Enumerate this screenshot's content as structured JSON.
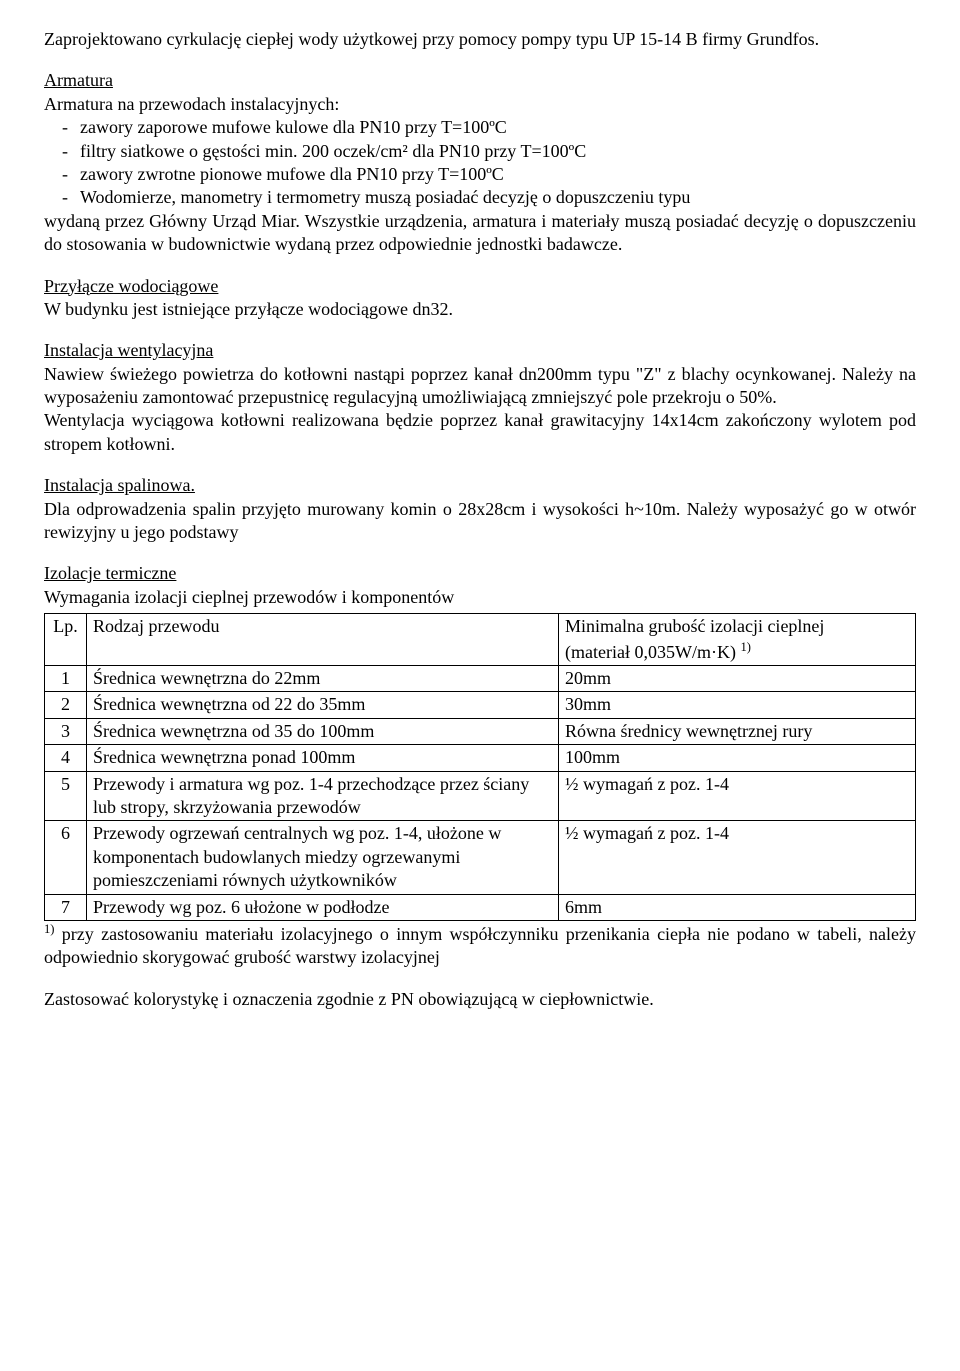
{
  "intro_p1": "Zaprojektowano cyrkulację ciepłej wody użytkowej przy pomocy pompy typu UP 15-14 B firmy Grundfos.",
  "armatura": {
    "heading": "Armatura",
    "line2": "Armatura na przewodach instalacyjnych:",
    "bullets": [
      "zawory zaporowe mufowe kulowe dla PN10 przy T=100ºC",
      "filtry siatkowe o gęstości min. 200 oczek/cm² dla PN10 przy T=100ºC",
      "zawory zwrotne pionowe mufowe dla PN10 przy T=100ºC",
      "Wodomierze, manometry i termometry muszą posiadać decyzję o dopuszczeniu typu"
    ],
    "continuation": "wydaną przez Główny Urząd Miar. Wszystkie urządzenia, armatura i materiały muszą posiadać decyzję o dopuszczeniu do stosowania w budownictwie wydaną przez odpowiednie jednostki badawcze."
  },
  "przylacze": {
    "heading": "Przyłącze wodociągowe",
    "body": "W budynku jest istniejące przyłącze wodociągowe dn32."
  },
  "wentylacja": {
    "heading": "Instalacja wentylacyjna",
    "p1": "Nawiew świeżego powietrza do kotłowni nastąpi poprzez kanał dn200mm typu \"Z\" z blachy ocynkowanej. Należy na wyposażeniu zamontować przepustnicę regulacyjną umożliwiającą zmniejszyć pole przekroju o 50%.",
    "p2": "Wentylacja wyciągowa kotłowni realizowana będzie poprzez kanał grawitacyjny 14x14cm zakończony wylotem pod stropem kotłowni."
  },
  "spalinowa": {
    "heading": "Instalacja spalinowa.",
    "p1": "Dla odprowadzenia spalin przyjęto murowany komin o 28x28cm i wysokości h~10m. Należy wyposażyć go w otwór rewizyjny u jego podstawy"
  },
  "izolacje": {
    "heading": "Izolacje termiczne",
    "sub": "Wymagania izolacji cieplnej przewodów i komponentów"
  },
  "table": {
    "header": {
      "lp": "Lp.",
      "rodzaj": "Rodzaj przewodu",
      "min_line1": "Minimalna grubość izolacji cieplnej",
      "min_line2_prefix": "(materiał 0,035W/m·K) ",
      "min_line2_sup": "1)"
    },
    "rows": [
      {
        "lp": "1",
        "rodzaj": "Średnica wewnętrzna do 22mm",
        "min": "20mm"
      },
      {
        "lp": "2",
        "rodzaj": "Średnica wewnętrzna od 22 do 35mm",
        "min": "30mm"
      },
      {
        "lp": "3",
        "rodzaj": "Średnica wewnętrzna od 35 do 100mm",
        "min": "Równa średnicy wewnętrznej rury"
      },
      {
        "lp": "4",
        "rodzaj": "Średnica wewnętrzna ponad 100mm",
        "min": "100mm"
      },
      {
        "lp": "5",
        "rodzaj": "Przewody i armatura wg poz. 1-4 przechodzące przez ściany lub stropy, skrzyżowania przewodów",
        "min": "½ wymagań z poz. 1-4"
      },
      {
        "lp": "6",
        "rodzaj": "Przewody ogrzewań centralnych wg poz. 1-4, ułożone w komponentach budowlanych miedzy ogrzewanymi pomieszczeniami równych użytkowników",
        "min": "½ wymagań z poz. 1-4"
      },
      {
        "lp": "7",
        "rodzaj": "Przewody wg poz. 6 ułożone w podłodze",
        "min": "6mm"
      }
    ]
  },
  "footnote_sup": "1)",
  "footnote": " przy zastosowaniu materiału izolacyjnego o innym współczynniku przenikania ciepła nie podano w tabeli, należy odpowiednio skorygować grubość warstwy izolacyjnej",
  "last_line": "Zastosować kolorystykę i oznaczenia zgodnie z PN obowiązującą w ciepłownictwie."
}
